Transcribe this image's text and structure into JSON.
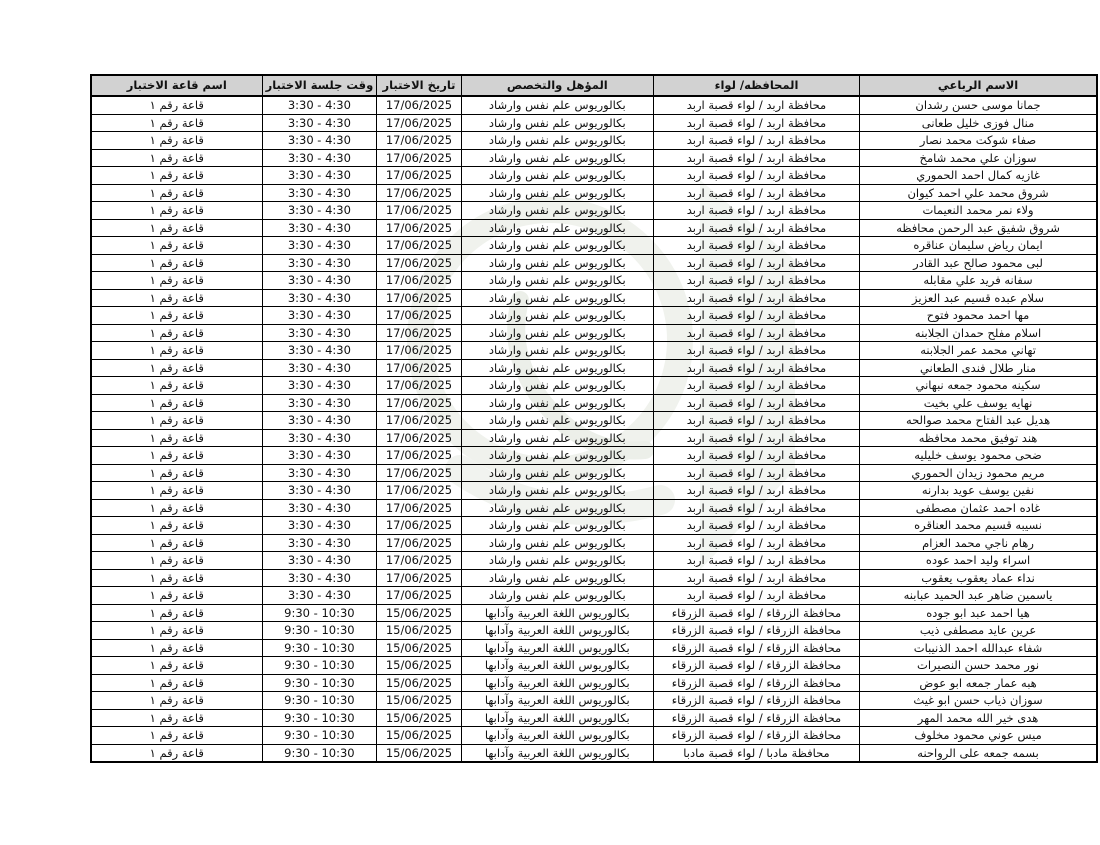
{
  "colors": {
    "header_bg": "#d2d2d2",
    "border": "#000000",
    "watermark": "#e4e9e0"
  },
  "table": {
    "columns": [
      {
        "key": "name",
        "label": "الاسم الرباعي"
      },
      {
        "key": "governorate",
        "label": "المحافظه/ لواء"
      },
      {
        "key": "qualification",
        "label": "المؤهل والتخصص"
      },
      {
        "key": "date",
        "label": "تاريخ الاختبار"
      },
      {
        "key": "time",
        "label": "وقت جلسة الاختبار"
      },
      {
        "key": "hall",
        "label": "اسم قاعة الاختبار"
      }
    ],
    "rows": [
      {
        "name": "جمانا موسى حسن رشدان",
        "governorate": "محافظة اربد / لواء قصبة اربد",
        "qualification": "بكالوريوس علم نفس وارشاد",
        "date": "17/06/2025",
        "time": "3:30 - 4:30",
        "hall": "قاعة رقم ١"
      },
      {
        "name": "منال فوزى خليل طعانى",
        "governorate": "محافظة اربد / لواء قصبة اربد",
        "qualification": "بكالوريوس علم نفس وارشاد",
        "date": "17/06/2025",
        "time": "3:30 - 4:30",
        "hall": "قاعة رقم ١"
      },
      {
        "name": "صفاء شوكت محمد نصار",
        "governorate": "محافظة اربد / لواء قصبة اربد",
        "qualification": "بكالوريوس علم نفس وارشاد",
        "date": "17/06/2025",
        "time": "3:30 - 4:30",
        "hall": "قاعة رقم ١"
      },
      {
        "name": "سوزان علي محمد شامخ",
        "governorate": "محافظة اربد / لواء قصبة اربد",
        "qualification": "بكالوريوس علم نفس وارشاد",
        "date": "17/06/2025",
        "time": "3:30 - 4:30",
        "hall": "قاعة رقم ١"
      },
      {
        "name": "غازيه كمال احمد الحموري",
        "governorate": "محافظة اربد / لواء قصبة اربد",
        "qualification": "بكالوريوس علم نفس وارشاد",
        "date": "17/06/2025",
        "time": "3:30 - 4:30",
        "hall": "قاعة رقم ١"
      },
      {
        "name": "شروق محمد علي احمد كيوان",
        "governorate": "محافظة اربد / لواء قصبة اربد",
        "qualification": "بكالوريوس علم نفس وارشاد",
        "date": "17/06/2025",
        "time": "3:30 - 4:30",
        "hall": "قاعة رقم ١"
      },
      {
        "name": "ولاء نمر محمد النعيمات",
        "governorate": "محافظة اربد / لواء قصبة اربد",
        "qualification": "بكالوريوس علم نفس وارشاد",
        "date": "17/06/2025",
        "time": "3:30 - 4:30",
        "hall": "قاعة رقم ١"
      },
      {
        "name": "شروق شفيق عبد الرحمن محافظه",
        "governorate": "محافظة اربد / لواء قصبة اربد",
        "qualification": "بكالوريوس علم نفس وارشاد",
        "date": "17/06/2025",
        "time": "3:30 - 4:30",
        "hall": "قاعة رقم ١"
      },
      {
        "name": "ايمان رياض سليمان عناقره",
        "governorate": "محافظة اربد / لواء قصبة اربد",
        "qualification": "بكالوريوس علم نفس وارشاد",
        "date": "17/06/2025",
        "time": "3:30 - 4:30",
        "hall": "قاعة رقم ١"
      },
      {
        "name": "لبى محمود صالح عبد القادر",
        "governorate": "محافظة اربد / لواء قصبة اربد",
        "qualification": "بكالوريوس علم نفس وارشاد",
        "date": "17/06/2025",
        "time": "3:30 - 4:30",
        "hall": "قاعة رقم ١"
      },
      {
        "name": "سفانه فريد علي مقابله",
        "governorate": "محافظة اربد / لواء قصبة اربد",
        "qualification": "بكالوريوس علم نفس وارشاد",
        "date": "17/06/2025",
        "time": "3:30 - 4:30",
        "hall": "قاعة رقم ١"
      },
      {
        "name": "سلام عبده قسيم عبد العزيز",
        "governorate": "محافظة اربد / لواء قصبة اربد",
        "qualification": "بكالوريوس علم نفس وارشاد",
        "date": "17/06/2025",
        "time": "3:30 - 4:30",
        "hall": "قاعة رقم ١"
      },
      {
        "name": "مها احمد محمود فتوح",
        "governorate": "محافظة اربد / لواء قصبة اربد",
        "qualification": "بكالوريوس علم نفس وارشاد",
        "date": "17/06/2025",
        "time": "3:30 - 4:30",
        "hall": "قاعة رقم ١"
      },
      {
        "name": "اسلام مفلح حمدان الجلابنه",
        "governorate": "محافظة اربد / لواء قصبة اربد",
        "qualification": "بكالوريوس علم نفس وارشاد",
        "date": "17/06/2025",
        "time": "3:30 - 4:30",
        "hall": "قاعة رقم ١"
      },
      {
        "name": "تهاني محمد عمر الجلابنه",
        "governorate": "محافظة اربد / لواء قصبة اربد",
        "qualification": "بكالوريوس علم نفس وارشاد",
        "date": "17/06/2025",
        "time": "3:30 - 4:30",
        "hall": "قاعة رقم ١"
      },
      {
        "name": "منار طلال فندى الطعاني",
        "governorate": "محافظة اربد / لواء قصبة اربد",
        "qualification": "بكالوريوس علم نفس وارشاد",
        "date": "17/06/2025",
        "time": "3:30 - 4:30",
        "hall": "قاعة رقم ١"
      },
      {
        "name": "سكينه محمود جمعه نبهاني",
        "governorate": "محافظة اربد / لواء قصبة اربد",
        "qualification": "بكالوريوس علم نفس وارشاد",
        "date": "17/06/2025",
        "time": "3:30 - 4:30",
        "hall": "قاعة رقم ١"
      },
      {
        "name": "نهايه يوسف علي بخيت",
        "governorate": "محافظة اربد / لواء قصبة اربد",
        "qualification": "بكالوريوس علم نفس وارشاد",
        "date": "17/06/2025",
        "time": "3:30 - 4:30",
        "hall": "قاعة رقم ١"
      },
      {
        "name": "هديل عبد الفتاح محمد صوالحه",
        "governorate": "محافظة اربد / لواء قصبة اربد",
        "qualification": "بكالوريوس علم نفس وارشاد",
        "date": "17/06/2025",
        "time": "3:30 - 4:30",
        "hall": "قاعة رقم ١"
      },
      {
        "name": "هند توفيق محمد محافظه",
        "governorate": "محافظة اربد / لواء قصبة اربد",
        "qualification": "بكالوريوس علم نفس وارشاد",
        "date": "17/06/2025",
        "time": "3:30 - 4:30",
        "hall": "قاعة رقم ١"
      },
      {
        "name": "ضحى محمود يوسف خليليه",
        "governorate": "محافظة اربد / لواء قصبة اربد",
        "qualification": "بكالوريوس علم نفس وارشاد",
        "date": "17/06/2025",
        "time": "3:30 - 4:30",
        "hall": "قاعة رقم ١"
      },
      {
        "name": "مريم محمود زيدان الحموري",
        "governorate": "محافظة اربد / لواء قصبة اربد",
        "qualification": "بكالوريوس علم نفس وارشاد",
        "date": "17/06/2025",
        "time": "3:30 - 4:30",
        "hall": "قاعة رقم ١"
      },
      {
        "name": "نفين يوسف عويد بدارنه",
        "governorate": "محافظة اربد / لواء قصبة اربد",
        "qualification": "بكالوريوس علم نفس وارشاد",
        "date": "17/06/2025",
        "time": "3:30 - 4:30",
        "hall": "قاعة رقم ١"
      },
      {
        "name": "غاده احمد عثمان مصطفى",
        "governorate": "محافظة اربد / لواء قصبة اربد",
        "qualification": "بكالوريوس علم نفس وارشاد",
        "date": "17/06/2025",
        "time": "3:30 - 4:30",
        "hall": "قاعة رقم ١"
      },
      {
        "name": "نسيبه قسيم محمد العناقره",
        "governorate": "محافظة اربد / لواء قصبة اربد",
        "qualification": "بكالوريوس علم نفس وارشاد",
        "date": "17/06/2025",
        "time": "3:30 - 4:30",
        "hall": "قاعة رقم ١"
      },
      {
        "name": "رهام ناجي محمد العزام",
        "governorate": "محافظة اربد / لواء قصبة اربد",
        "qualification": "بكالوريوس علم نفس وارشاد",
        "date": "17/06/2025",
        "time": "3:30 - 4:30",
        "hall": "قاعة رقم ١"
      },
      {
        "name": "اسراء وليد احمد عوده",
        "governorate": "محافظة اربد / لواء قصبة اربد",
        "qualification": "بكالوريوس علم نفس وارشاد",
        "date": "17/06/2025",
        "time": "3:30 - 4:30",
        "hall": "قاعة رقم ١"
      },
      {
        "name": "نداء عماد يعقوب يعقوب",
        "governorate": "محافظة اربد / لواء قصبة اربد",
        "qualification": "بكالوريوس علم نفس وارشاد",
        "date": "17/06/2025",
        "time": "3:30 - 4:30",
        "hall": "قاعة رقم ١"
      },
      {
        "name": "ياسمين ضاهر عبد الحميد عبابنه",
        "governorate": "محافظة اربد / لواء قصبة اربد",
        "qualification": "بكالوريوس علم نفس وارشاد",
        "date": "17/06/2025",
        "time": "3:30 - 4:30",
        "hall": "قاعة رقم ١"
      },
      {
        "name": "هيا احمد عبد ابو جوده",
        "governorate": "محافظة الزرقاء / لواء قصبة الزرقاء",
        "qualification": "بكالوريوس اللغة العربية وآدابها",
        "date": "15/06/2025",
        "time": "9:30 - 10:30",
        "hall": "قاعة رقم ١"
      },
      {
        "name": "عرين عايد مصطفى ذيب",
        "governorate": "محافظة الزرقاء / لواء قصبة الزرقاء",
        "qualification": "بكالوريوس اللغة العربية وآدابها",
        "date": "15/06/2025",
        "time": "9:30 - 10:30",
        "hall": "قاعة رقم ١"
      },
      {
        "name": "شفاء عبدالله احمد الذنيبات",
        "governorate": "محافظة الزرقاء / لواء قصبة الزرقاء",
        "qualification": "بكالوريوس اللغة العربية وآدابها",
        "date": "15/06/2025",
        "time": "9:30 - 10:30",
        "hall": "قاعة رقم ١"
      },
      {
        "name": "نور محمد حسن النصيرات",
        "governorate": "محافظة الزرقاء / لواء قصبة الزرقاء",
        "qualification": "بكالوريوس اللغة العربية وآدابها",
        "date": "15/06/2025",
        "time": "9:30 - 10:30",
        "hall": "قاعة رقم ١"
      },
      {
        "name": "هبه عمار جمعه ابو عوض",
        "governorate": "محافظة الزرقاء / لواء قصبة الزرقاء",
        "qualification": "بكالوريوس اللغة العربية وآدابها",
        "date": "15/06/2025",
        "time": "9:30 - 10:30",
        "hall": "قاعة رقم ١"
      },
      {
        "name": "سوزان ذياب حسن ابو غيث",
        "governorate": "محافظة الزرقاء / لواء قصبة الزرقاء",
        "qualification": "بكالوريوس اللغة العربية وآدابها",
        "date": "15/06/2025",
        "time": "9:30 - 10:30",
        "hall": "قاعة رقم ١"
      },
      {
        "name": "هدى خير الله محمد المهر",
        "governorate": "محافظة الزرقاء / لواء قصبة الزرقاء",
        "qualification": "بكالوريوس اللغة العربية وآدابها",
        "date": "15/06/2025",
        "time": "9:30 - 10:30",
        "hall": "قاعة رقم ١"
      },
      {
        "name": "ميس عوني محمود مخلوف",
        "governorate": "محافظة الزرقاء / لواء قصبة الزرقاء",
        "qualification": "بكالوريوس اللغة العربية وآدابها",
        "date": "15/06/2025",
        "time": "9:30 - 10:30",
        "hall": "قاعة رقم ١"
      },
      {
        "name": "بسمه جمعه على الرواحنه",
        "governorate": "محافظة مادبا / لواء قصبة مادبا",
        "qualification": "بكالوريوس اللغة العربية وآدابها",
        "date": "15/06/2025",
        "time": "9:30 - 10:30",
        "hall": "قاعة رقم ١"
      }
    ]
  }
}
